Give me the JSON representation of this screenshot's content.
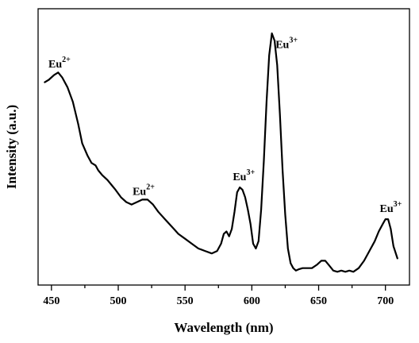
{
  "chart_data": {
    "type": "line",
    "title": "",
    "xlabel": "Wavelength (nm)",
    "ylabel": "Intensity (a.u.)",
    "xlim": [
      440,
      718
    ],
    "ylim": [
      0,
      1.0
    ],
    "x_ticks": [
      450,
      500,
      550,
      600,
      650,
      700
    ],
    "show_y_tick_labels": false,
    "grid": false,
    "series": [
      {
        "x": [
          445,
          448,
          452,
          455,
          458,
          462,
          466,
          470,
          473,
          477,
          480,
          483,
          485,
          488,
          492,
          495,
          498,
          502,
          506,
          510,
          514,
          518,
          522,
          526,
          530,
          535,
          540,
          545,
          550,
          555,
          560,
          565,
          570,
          574,
          577,
          579,
          581,
          583,
          585,
          587,
          589,
          591,
          593,
          595,
          597,
          599,
          601,
          603,
          605,
          607,
          609,
          611,
          613,
          615,
          617,
          619,
          621,
          623,
          625,
          627,
          629,
          631,
          633,
          635,
          638,
          641,
          645,
          649,
          652,
          655,
          658,
          661,
          664,
          667,
          670,
          673,
          676,
          680,
          684,
          688,
          692,
          695,
          698,
          700,
          702,
          704,
          706,
          709
        ],
        "y": [
          0.8,
          0.81,
          0.83,
          0.84,
          0.82,
          0.78,
          0.72,
          0.63,
          0.55,
          0.5,
          0.47,
          0.46,
          0.44,
          0.42,
          0.4,
          0.38,
          0.36,
          0.33,
          0.31,
          0.3,
          0.31,
          0.32,
          0.32,
          0.3,
          0.27,
          0.24,
          0.21,
          0.18,
          0.16,
          0.14,
          0.12,
          0.11,
          0.1,
          0.11,
          0.14,
          0.18,
          0.19,
          0.17,
          0.2,
          0.27,
          0.35,
          0.37,
          0.36,
          0.33,
          0.28,
          0.22,
          0.14,
          0.12,
          0.15,
          0.28,
          0.48,
          0.72,
          0.91,
          1.0,
          0.97,
          0.87,
          0.67,
          0.44,
          0.26,
          0.12,
          0.06,
          0.04,
          0.03,
          0.035,
          0.04,
          0.04,
          0.04,
          0.055,
          0.07,
          0.07,
          0.05,
          0.03,
          0.025,
          0.03,
          0.025,
          0.03,
          0.025,
          0.04,
          0.07,
          0.11,
          0.15,
          0.19,
          0.22,
          0.24,
          0.24,
          0.2,
          0.13,
          0.08
        ]
      }
    ],
    "annotations": [
      {
        "base": "Eu",
        "sup": "2+",
        "x": 456,
        "y": 0.86
      },
      {
        "base": "Eu",
        "sup": "2+",
        "x": 519,
        "y": 0.34
      },
      {
        "base": "Eu",
        "sup": "3+",
        "x": 594,
        "y": 0.4
      },
      {
        "base": "Eu",
        "sup": "3+",
        "x": 626,
        "y": 0.94
      },
      {
        "base": "Eu",
        "sup": "3+",
        "x": 704,
        "y": 0.27
      }
    ]
  }
}
